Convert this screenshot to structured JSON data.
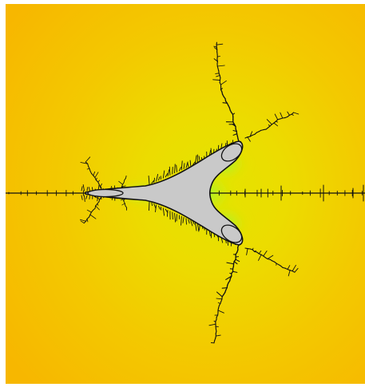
{
  "image": {
    "subject": "fractal",
    "colors": {
      "background_outer": "#f6ba00",
      "background_mid": "#f2cf00",
      "background_inner": "#e9e000",
      "glow": "#7cff4a",
      "set_fill": "#c9c9c9",
      "filament": "#111111",
      "page": "#ffffff"
    }
  }
}
